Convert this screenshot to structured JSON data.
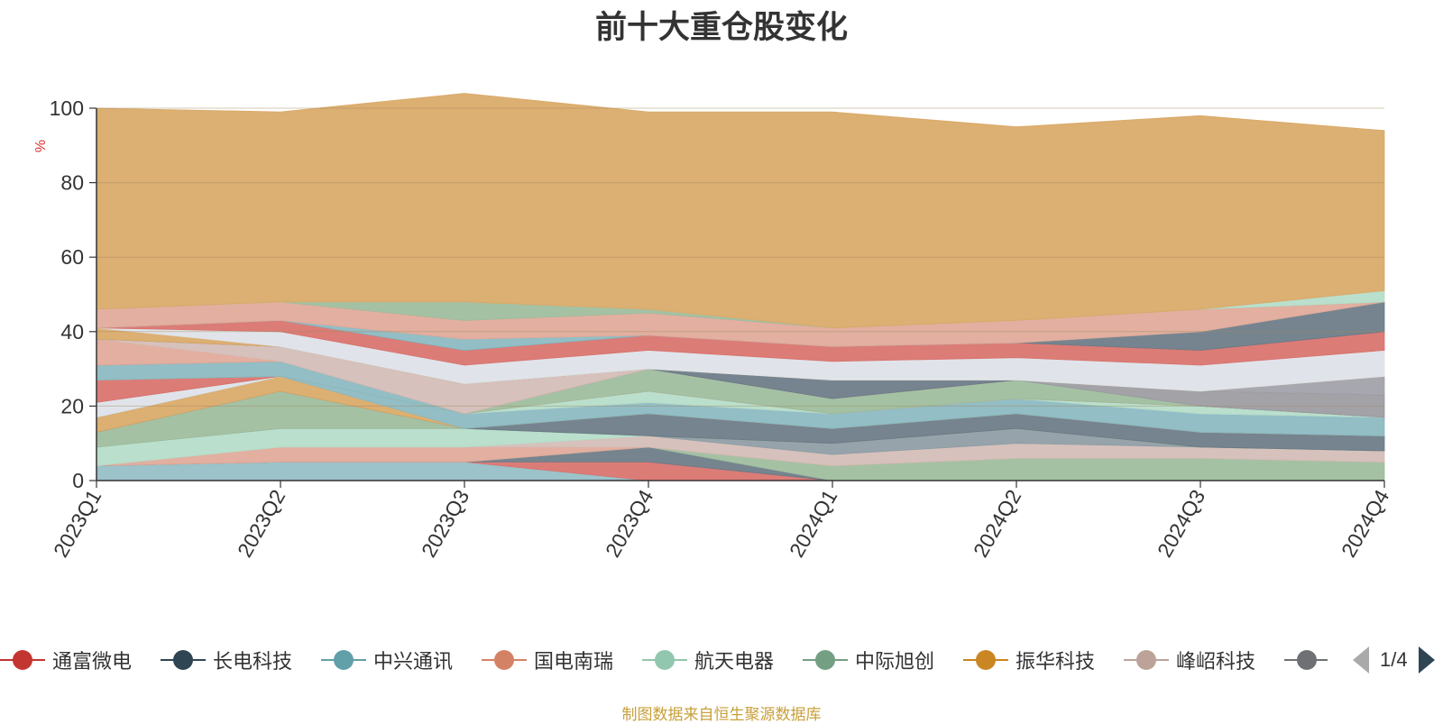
{
  "chart_data": {
    "type": "area",
    "stacked": true,
    "title": "前十大重仓股变化",
    "ylabel": "%",
    "ylim": [
      0,
      100
    ],
    "yticks": [
      0,
      20,
      40,
      60,
      80,
      100
    ],
    "grid": true,
    "legend_position": "bottom",
    "categories": [
      "2023Q1",
      "2023Q2",
      "2023Q3",
      "2023Q4",
      "2024Q1",
      "2024Q2",
      "2024Q3",
      "2024Q4"
    ],
    "series": [
      {
        "color": "#94bdc5",
        "values": [
          4,
          5,
          5,
          0,
          0,
          0,
          0,
          0
        ]
      },
      {
        "color": "#d9716b",
        "values": [
          0,
          0,
          0,
          5,
          0,
          0,
          0,
          0
        ]
      },
      {
        "color": "#6a7a85",
        "values": [
          0,
          0,
          0,
          4,
          0,
          0,
          0,
          0
        ]
      },
      {
        "color": "#9dbc9c",
        "values": [
          0,
          0,
          0,
          0,
          4,
          6,
          6,
          5
        ]
      },
      {
        "color": "#e0a898",
        "values": [
          0,
          4,
          4,
          0,
          0,
          0,
          0,
          0
        ]
      },
      {
        "color": "#d4bcb6",
        "values": [
          0,
          0,
          0,
          3,
          3,
          4,
          3,
          3
        ]
      },
      {
        "color": "#b4dcc8",
        "values": [
          5,
          5,
          5,
          0,
          0,
          0,
          0,
          0
        ]
      },
      {
        "color": "#8e9ba3",
        "values": [
          0,
          0,
          0,
          0,
          3,
          4,
          0,
          0
        ]
      },
      {
        "color": "#9dbc9c",
        "values": [
          4,
          10,
          0,
          0,
          0,
          0,
          0,
          0
        ]
      },
      {
        "color": "#6a7a85",
        "values": [
          0,
          0,
          0,
          6,
          4,
          4,
          4,
          4
        ]
      },
      {
        "color": "#d9a866",
        "values": [
          4,
          4,
          0,
          0,
          0,
          0,
          0,
          0
        ]
      },
      {
        "color": "#8ab8c0",
        "values": [
          0,
          0,
          4,
          3,
          4,
          4,
          5,
          5
        ]
      },
      {
        "color": "#dde2e8",
        "values": [
          4,
          0,
          0,
          0,
          0,
          0,
          0,
          0
        ]
      },
      {
        "color": "#b4dcc8",
        "values": [
          0,
          0,
          0,
          3,
          0,
          0,
          2,
          0
        ]
      },
      {
        "color": "#d9716b",
        "values": [
          6,
          0,
          0,
          0,
          0,
          0,
          0,
          0
        ]
      },
      {
        "color": "#9dbc9c",
        "values": [
          0,
          0,
          0,
          6,
          4,
          5,
          0,
          0
        ]
      },
      {
        "color": "#8ab8c0",
        "values": [
          4,
          4,
          0,
          0,
          0,
          0,
          0,
          0
        ]
      },
      {
        "color": "#9a9a9f",
        "values": [
          0,
          0,
          0,
          0,
          0,
          0,
          4,
          6
        ]
      },
      {
        "color": "#e0a898",
        "values": [
          7,
          0,
          0,
          0,
          0,
          0,
          0,
          0
        ]
      },
      {
        "color": "#d4bcb6",
        "values": [
          0,
          4,
          8,
          0,
          0,
          0,
          0,
          0
        ]
      },
      {
        "color": "#6a7a85",
        "values": [
          0,
          0,
          0,
          0,
          5,
          0,
          0,
          0
        ]
      },
      {
        "color": "#a0a0a8",
        "values": [
          0,
          0,
          0,
          0,
          0,
          0,
          0,
          5
        ]
      },
      {
        "color": "#d9a866",
        "values": [
          3,
          0,
          0,
          0,
          0,
          0,
          0,
          0
        ]
      },
      {
        "color": "#dde2e8",
        "values": [
          0,
          4,
          5,
          5,
          5,
          6,
          7,
          7
        ]
      },
      {
        "color": "#d9716b",
        "values": [
          0,
          3,
          4,
          4,
          4,
          4,
          4,
          5
        ]
      },
      {
        "color": "#6a7a85",
        "values": [
          0,
          0,
          0,
          0,
          0,
          0,
          5,
          8
        ]
      },
      {
        "color": "#8ab8c0",
        "values": [
          0,
          0,
          3,
          0,
          0,
          0,
          0,
          0
        ]
      },
      {
        "color": "#e0a898",
        "values": [
          5,
          5,
          5,
          6,
          5,
          6,
          6,
          0
        ]
      },
      {
        "color": "#9dbc9c",
        "values": [
          0,
          0,
          5,
          1,
          0,
          0,
          0,
          0
        ]
      },
      {
        "color": "#b4dcc8",
        "values": [
          0,
          0,
          0,
          0,
          0,
          0,
          0,
          3
        ]
      },
      {
        "color": "#d9a866",
        "values": [
          54,
          51,
          56,
          53,
          58,
          52,
          52,
          43
        ]
      }
    ]
  },
  "legend": {
    "items": [
      {
        "label": "通富微电",
        "color": "#c23531"
      },
      {
        "label": "长电科技",
        "color": "#2f4554"
      },
      {
        "label": "中兴通讯",
        "color": "#61a0a8"
      },
      {
        "label": "国电南瑞",
        "color": "#d48265"
      },
      {
        "label": "航天电器",
        "color": "#91c7ae"
      },
      {
        "label": "中际旭创",
        "color": "#749f83"
      },
      {
        "label": "振华科技",
        "color": "#ca8622"
      },
      {
        "label": "峰岹科技",
        "color": "#bda29a"
      },
      {
        "label": "",
        "color": "#6e7074"
      }
    ],
    "page_text": "1/4"
  },
  "source_note": "制图数据来自恒生聚源数据库"
}
